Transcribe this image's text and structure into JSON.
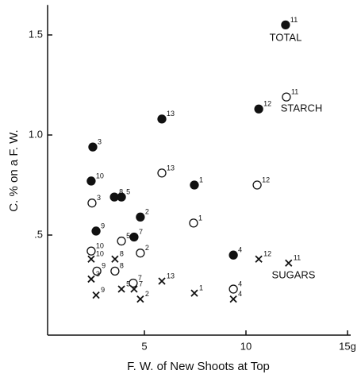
{
  "chart_data": {
    "type": "scatter",
    "xlabel": "F. W. of New Shoots at Top",
    "ylabel": "C. % on a F. W.",
    "xlim": [
      0,
      15
    ],
    "ylim": [
      0,
      1.65
    ],
    "xticks": [
      5,
      10,
      {
        "value": 15,
        "label": "15g"
      }
    ],
    "yticks": [
      {
        "value": 0.5,
        "label": ".5"
      },
      {
        "value": 1.0,
        "label": "1.0"
      },
      1.5
    ],
    "series": [
      {
        "name": "TOTAL",
        "marker": "filled",
        "color": "#111",
        "x": [
          11.95,
          5.86,
          2.46,
          2.38,
          3.52,
          3.87,
          7.46,
          10.63,
          4.8,
          2.62,
          4.49,
          9.38
        ],
        "values": [
          1.55,
          1.08,
          0.94,
          0.77,
          0.69,
          0.69,
          0.75,
          1.13,
          0.59,
          0.52,
          0.49,
          0.4
        ],
        "labels": [
          "11",
          "13",
          "3",
          "10",
          "8",
          "5",
          "1",
          "12",
          "2",
          "9",
          "7",
          "4"
        ]
      },
      {
        "name": "STARCH",
        "marker": "open",
        "color": "#111",
        "x": [
          11.99,
          10.55,
          5.86,
          2.42,
          7.42,
          3.87,
          4.8,
          2.38,
          2.66,
          3.55,
          4.45,
          9.38
        ],
        "values": [
          1.19,
          0.75,
          0.81,
          0.66,
          0.56,
          0.47,
          0.41,
          0.42,
          0.32,
          0.32,
          0.26,
          0.23
        ],
        "labels": [
          "11",
          "12",
          "13",
          "3",
          "1",
          "5",
          "2",
          "10",
          "9",
          "8",
          "7",
          "4"
        ]
      },
      {
        "name": "SUGARS",
        "marker": "cross",
        "color": "#111",
        "x": [
          2.38,
          10.63,
          12.1,
          3.55,
          5.86,
          2.38,
          3.87,
          4.49,
          7.46,
          2.62,
          4.8,
          9.38
        ],
        "values": [
          0.38,
          0.38,
          0.36,
          0.38,
          0.27,
          0.28,
          0.23,
          0.23,
          0.21,
          0.2,
          0.18,
          0.18
        ],
        "labels": [
          "10",
          "12",
          "11",
          "8",
          "13",
          "3",
          "5",
          "7",
          "1",
          "9",
          "2",
          "4"
        ]
      }
    ]
  }
}
